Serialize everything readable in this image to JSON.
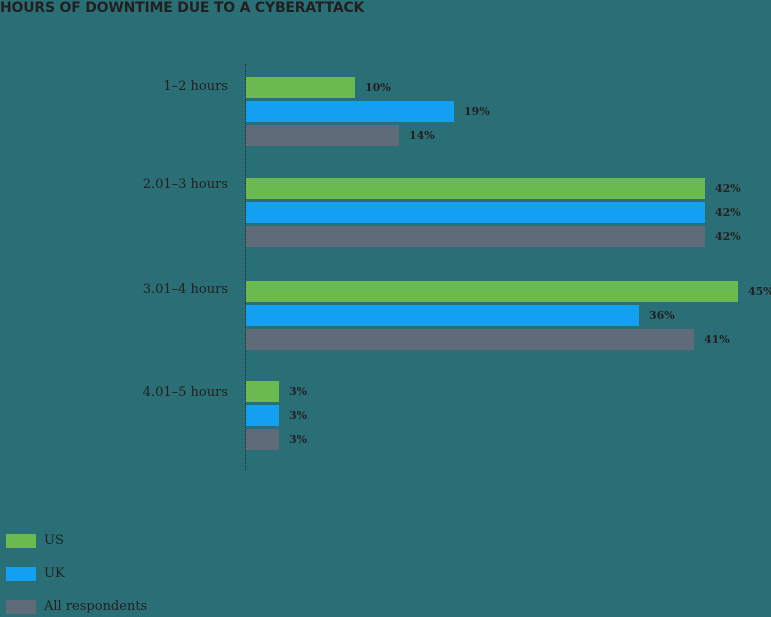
{
  "chart_data": {
    "type": "bar",
    "orientation": "horizontal",
    "title": "HOURS OF DOWNTIME DUE TO A CYBERATTACK",
    "categories": [
      "1–2 hours",
      "2.01–3 hours",
      "3.01–4 hours",
      "4.01–5 hours"
    ],
    "series": [
      {
        "name": "US",
        "color": "#6aba50",
        "values": [
          10,
          42,
          45,
          3
        ],
        "labels": [
          "10%",
          "42%",
          "45%",
          "3%"
        ]
      },
      {
        "name": "UK",
        "color": "#14a0f0",
        "values": [
          19,
          42,
          36,
          3
        ],
        "labels": [
          "19%",
          "42%",
          "36%",
          "3%"
        ]
      },
      {
        "name": "All respondents",
        "color": "#5f6b78",
        "values": [
          14,
          42,
          41,
          3
        ],
        "labels": [
          "14%",
          "42%",
          "41%",
          "3%"
        ]
      }
    ],
    "xlabel": "",
    "ylabel": "",
    "xlim": [
      0,
      45
    ],
    "grid": false,
    "legend_position": "bottom-left",
    "unit": "%"
  }
}
